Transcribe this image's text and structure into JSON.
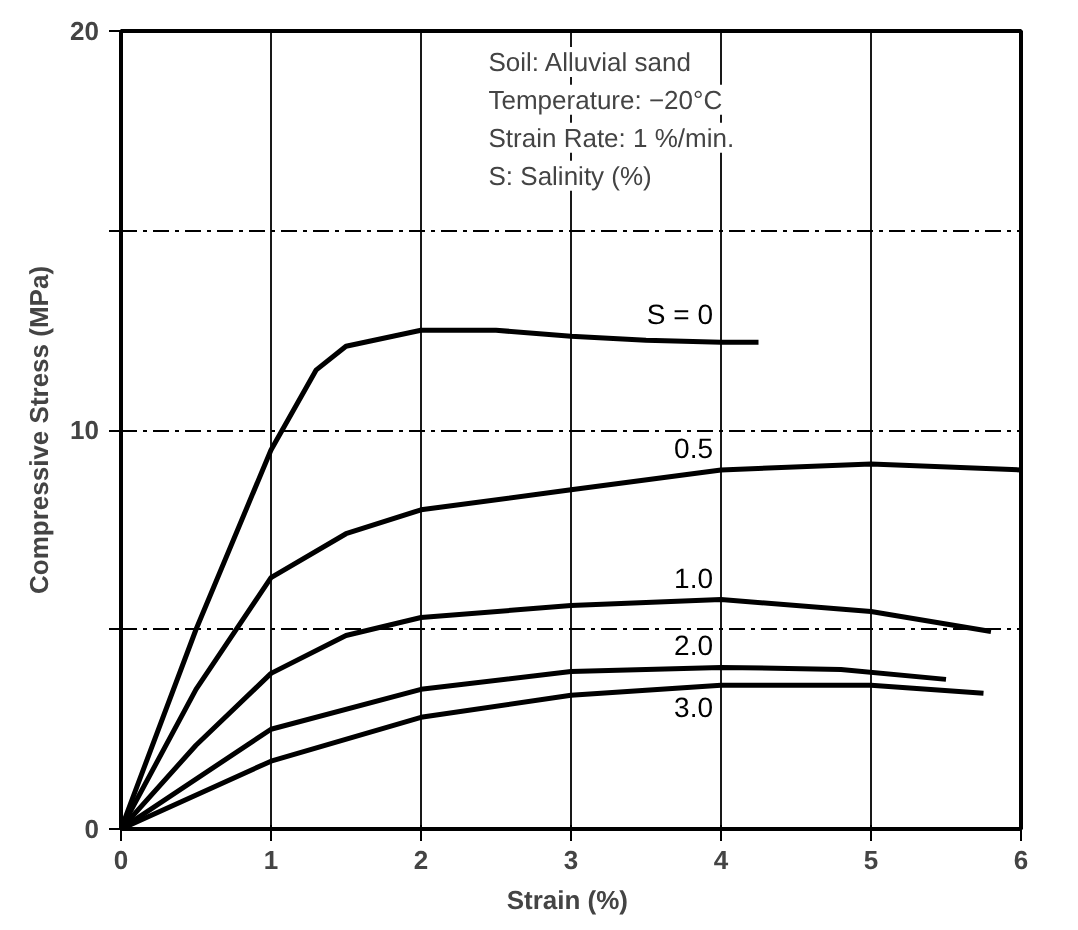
{
  "chart_data": {
    "type": "line",
    "xlabel": "Strain  (%)",
    "ylabel": "Compressive Stress (MPa)",
    "xlim": [
      0,
      6
    ],
    "ylim": [
      0,
      20
    ],
    "xticks": [
      0,
      1,
      2,
      3,
      4,
      5,
      6
    ],
    "yticks": [
      0,
      {
        "value": 5,
        "label": null
      },
      10,
      {
        "value": 15,
        "label": null
      },
      20
    ],
    "grid": true,
    "marker": "none",
    "line_style": "solid",
    "series": [
      {
        "name": "S = 0",
        "color": "#000000",
        "x": [
          0,
          0.5,
          1,
          1.3,
          1.5,
          2,
          2.5,
          3,
          3.5,
          4,
          4.25
        ],
        "values": [
          0,
          5,
          9.5,
          11.5,
          12.1,
          12.5,
          12.5,
          12.35,
          12.25,
          12.2,
          12.2
        ]
      },
      {
        "name": "0.5",
        "color": "#000000",
        "x": [
          0,
          0.5,
          1,
          1.5,
          2,
          3,
          4,
          5,
          6
        ],
        "values": [
          0,
          3.5,
          6.3,
          7.4,
          8.0,
          8.5,
          9.0,
          9.15,
          9.0
        ]
      },
      {
        "name": "1.0",
        "color": "#000000",
        "x": [
          0,
          0.5,
          1,
          1.5,
          2,
          3,
          4,
          5,
          5.8
        ],
        "values": [
          0,
          2.1,
          3.9,
          4.85,
          5.3,
          5.6,
          5.75,
          5.45,
          4.95
        ]
      },
      {
        "name": "2.0",
        "color": "#000000",
        "x": [
          0,
          1,
          2,
          3,
          4,
          4.8,
          5.5
        ],
        "values": [
          0,
          2.5,
          3.5,
          3.95,
          4.05,
          4.0,
          3.75
        ]
      },
      {
        "name": "3.0",
        "color": "#000000",
        "x": [
          0,
          1,
          2,
          3,
          4,
          5,
          5.75
        ],
        "values": [
          0,
          1.7,
          2.8,
          3.35,
          3.6,
          3.6,
          3.4
        ]
      }
    ],
    "annotations": [
      "Soil:  Alluvial sand",
      "Temperature:  −20°C",
      "Strain Rate:    1 %/min.",
      "S:  Salinity (%)"
    ]
  }
}
